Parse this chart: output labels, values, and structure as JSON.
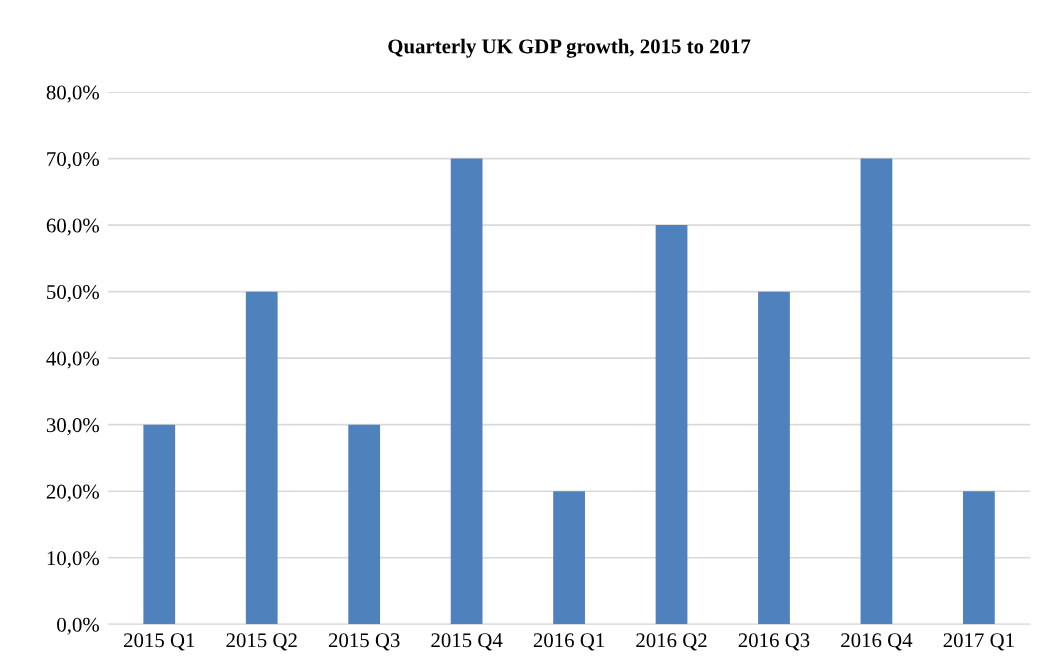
{
  "chart_data": {
    "type": "bar",
    "title": "Quarterly UK GDP growth, 2015 to 2017",
    "categories": [
      "2015 Q1",
      "2015 Q2",
      "2015 Q3",
      "2015 Q4",
      "2016 Q1",
      "2016 Q2",
      "2016 Q3",
      "2016 Q4",
      "2017 Q1"
    ],
    "values": [
      30,
      50,
      30,
      70,
      20,
      60,
      50,
      70,
      20
    ],
    "color": "#4f81bd",
    "ylim": [
      0,
      80
    ],
    "yticks": [
      {
        "value": 0,
        "label": "0,0%"
      },
      {
        "value": 10,
        "label": "10,0%"
      },
      {
        "value": 20,
        "label": "20,0%"
      },
      {
        "value": 30,
        "label": "30,0%"
      },
      {
        "value": 40,
        "label": "40,0%"
      },
      {
        "value": 50,
        "label": "50,0%"
      },
      {
        "value": 60,
        "label": "60,0%"
      },
      {
        "value": 70,
        "label": "70,0%"
      },
      {
        "value": 80,
        "label": "80,0%"
      }
    ],
    "grid": "y"
  }
}
